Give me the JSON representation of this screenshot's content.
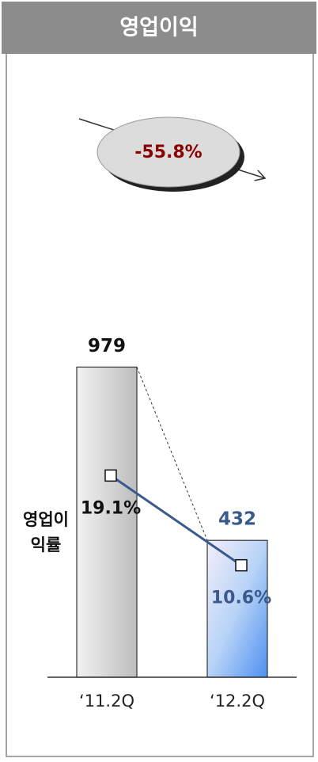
{
  "chart_data": {
    "type": "bar",
    "title": "영업이익",
    "annotation": "-55.8%",
    "categories": [
      "‘11.2Q",
      "‘12.2Q"
    ],
    "series": [
      {
        "name": "영업이익",
        "type": "bar",
        "color": "#5b9bd5",
        "values": [
          979,
          432
        ]
      },
      {
        "name": "영업이익률",
        "type": "line",
        "axis": "y2",
        "color": "#3a5a8c",
        "values": [
          19.1,
          10.6
        ],
        "value_labels": [
          "19.1%",
          "10.6%"
        ]
      }
    ],
    "ylim": [
      0,
      1000
    ],
    "y2lim": [
      0,
      30
    ]
  }
}
